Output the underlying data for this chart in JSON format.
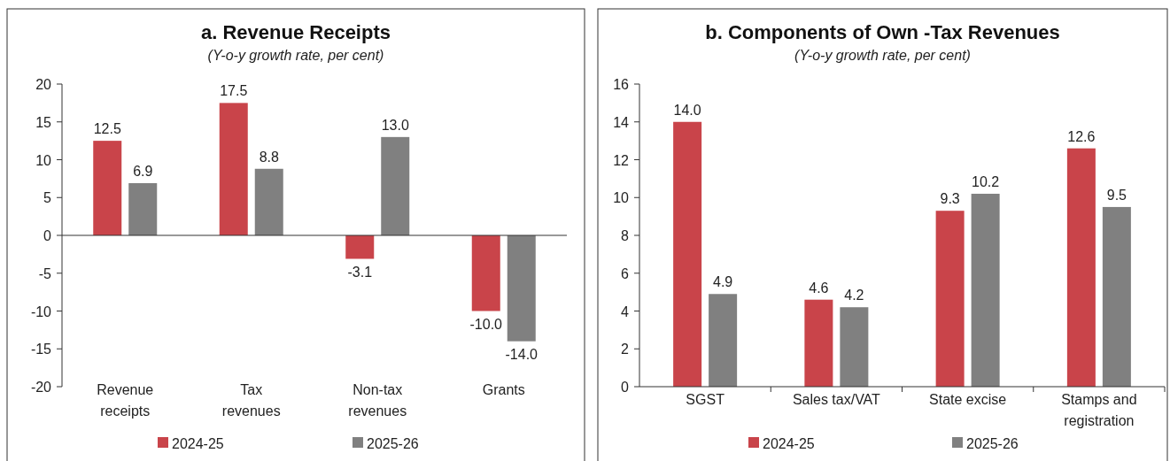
{
  "chart_data": [
    {
      "type": "bar",
      "title": "a. Revenue Receipts",
      "subtitle": "(Y-o-y growth rate, per cent)",
      "categories": [
        "Revenue receipts",
        "Tax revenues",
        "Non-tax revenues",
        "Grants"
      ],
      "series": [
        {
          "name": "2024-25",
          "color": "#c9444a",
          "values": [
            12.5,
            17.5,
            -3.1,
            -10.0
          ],
          "value_labels": [
            "12.5",
            "17.5",
            "-3.1",
            "-10.0"
          ]
        },
        {
          "name": "2025-26",
          "color": "#808080",
          "values": [
            6.9,
            8.8,
            13.0,
            -14.0
          ],
          "value_labels": [
            "6.9",
            "8.8",
            "13.0",
            "-14.0"
          ]
        }
      ],
      "ylim": [
        -20,
        20
      ],
      "yticks": [
        -20,
        -15,
        -10,
        -5,
        0,
        5,
        10,
        15,
        20
      ],
      "legend": "bottom"
    },
    {
      "type": "bar",
      "title": "b. Components of Own -Tax Revenues",
      "subtitle": "(Y-o-y growth rate, per cent)",
      "categories": [
        "SGST",
        "Sales tax/VAT",
        "State excise",
        "Stamps and registration"
      ],
      "series": [
        {
          "name": "2024-25",
          "color": "#c9444a",
          "values": [
            14.0,
            4.6,
            9.3,
            12.6
          ],
          "value_labels": [
            "14.0",
            "4.6",
            "9.3",
            "12.6"
          ]
        },
        {
          "name": "2025-26",
          "color": "#808080",
          "values": [
            4.9,
            4.2,
            10.2,
            9.5
          ],
          "value_labels": [
            "4.9",
            "4.2",
            "10.2",
            "9.5"
          ]
        }
      ],
      "ylim": [
        0,
        16
      ],
      "yticks": [
        0,
        2,
        4,
        6,
        8,
        10,
        12,
        14,
        16
      ],
      "legend": "bottom"
    }
  ]
}
